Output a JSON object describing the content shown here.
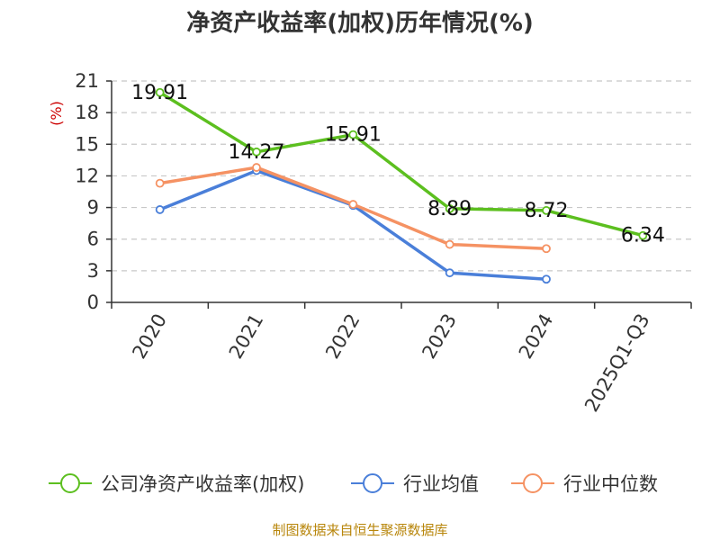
{
  "chart_data": {
    "type": "line",
    "title": "净资产收益率(加权)历年情况(%)",
    "ylabel": "(%)",
    "xlabel": "",
    "ylim": [
      0,
      21
    ],
    "yticks": [
      0,
      3,
      6,
      9,
      12,
      15,
      18,
      21
    ],
    "grid": true,
    "categories": [
      "2020",
      "2021",
      "2022",
      "2023",
      "2024",
      "2025Q1-Q3"
    ],
    "series": [
      {
        "name": "公司净资产收益率(加权)",
        "color": "#5cbf1f",
        "values": [
          19.91,
          14.27,
          15.91,
          8.89,
          8.72,
          6.34
        ],
        "labels": [
          "19.91",
          "14.27",
          "15.91",
          "8.89",
          "8.72",
          "6.34"
        ]
      },
      {
        "name": "行业均值",
        "color": "#4a7fd9",
        "values": [
          8.8,
          12.5,
          9.2,
          2.8,
          2.2,
          null
        ]
      },
      {
        "name": "行业中位数",
        "color": "#f59263",
        "values": [
          11.3,
          12.8,
          9.3,
          5.5,
          5.1,
          null
        ]
      }
    ],
    "legend_position": "bottom"
  },
  "source": "制图数据来自恒生聚源数据库"
}
